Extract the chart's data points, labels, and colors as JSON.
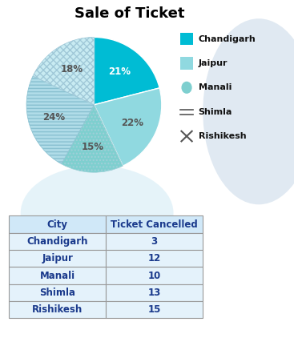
{
  "title": "Sale of Ticket",
  "pie_labels": [
    "Chandigarh",
    "Jaipur",
    "Manali",
    "Shimla",
    "Rishikesh"
  ],
  "pie_values": [
    21,
    22,
    15,
    24,
    18
  ],
  "pie_colors": [
    "#00BCD4",
    "#90D9E0",
    "#7ECFCF",
    "#B0DCE8",
    "#C8EBF2"
  ],
  "pie_hatch": [
    null,
    null,
    "....",
    "----",
    "xxxx"
  ],
  "pie_pct_labels": [
    "21%",
    "22%",
    "15%",
    "24%",
    "18%"
  ],
  "legend_labels": [
    "Chandigarh",
    "Jaipur",
    "Manali",
    "Shimla",
    "Rishikesh"
  ],
  "legend_colors": [
    "#00BCD4",
    "#90D9E0",
    "#7ECFCF",
    "#B0DCE8",
    "#C8EBF2"
  ],
  "table_cities": [
    "Chandigarh",
    "Jaipur",
    "Manali",
    "Shimla",
    "Rishikesh"
  ],
  "table_cancelled": [
    "3",
    "12",
    "10",
    "13",
    "15"
  ],
  "table_header": [
    "City",
    "Ticket Cancelled"
  ],
  "title_fontsize": 13,
  "body_fontsize": 8.5
}
